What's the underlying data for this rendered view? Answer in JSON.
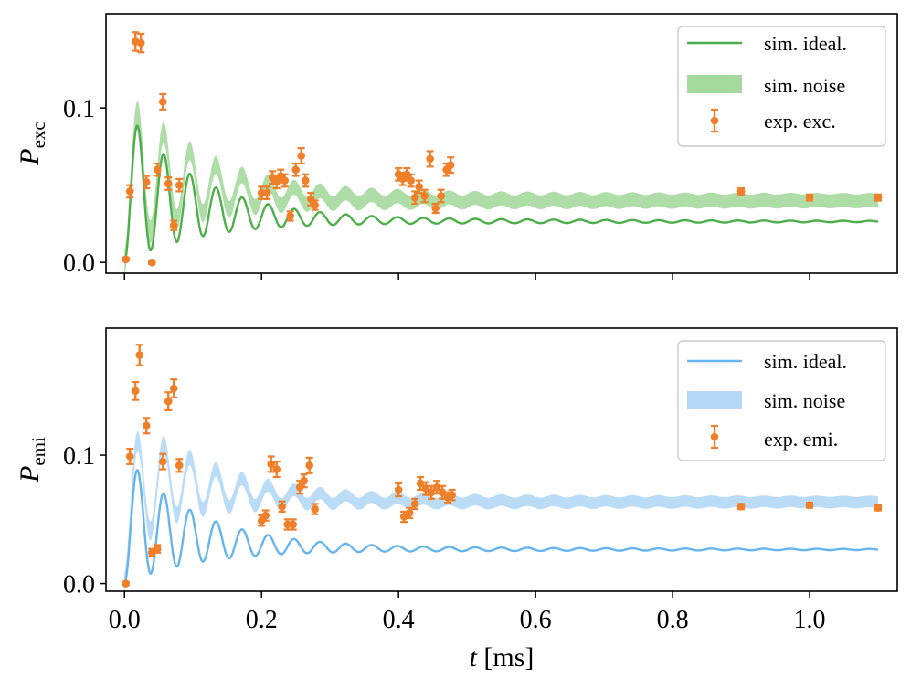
{
  "chart_data": [
    {
      "type": "line",
      "panel": "top",
      "ylabel": {
        "main": "P",
        "sub": "exc"
      },
      "xlabel": "",
      "xlim": [
        -0.027,
        1.128
      ],
      "ylim": [
        -0.007,
        0.161
      ],
      "xticks": [
        0.0,
        0.2,
        0.4,
        0.6,
        0.8,
        1.0
      ],
      "xtick_labels_visible": false,
      "yticks": [
        0.0,
        0.1
      ],
      "ytick_labels": [
        "0.0",
        "0.1"
      ],
      "colors": {
        "ideal": "#4daf4a",
        "noise_fill": "#a6d99d",
        "exp": "#f07f2a"
      },
      "legend": {
        "position": "top-right",
        "entries": [
          {
            "kind": "line",
            "label": "sim. ideal."
          },
          {
            "kind": "band",
            "label": "sim. noise"
          },
          {
            "kind": "errorbar",
            "label": "exp. exc."
          }
        ]
      },
      "model": {
        "period_ms": 0.0385,
        "decay_ms": 0.11,
        "ideal_peak": 0.1,
        "ideal_asymptote": 0.0265,
        "noise_offset_late": 0.0135,
        "noise_half_width": 0.0045,
        "x_end": 1.1
      },
      "series": [
        {
          "name": "sim. ideal.",
          "kind": "line",
          "description": "damped oscillation starting at 0, peaking ~0.10, decaying to ~0.027"
        },
        {
          "name": "sim. noise",
          "kind": "band",
          "description": "shaded band, oscillating, settling to ~0.035-0.044"
        },
        {
          "name": "exp. exc.",
          "kind": "errorbar",
          "points": [
            {
              "x": 0.002,
              "y": 0.002,
              "err": 0.001
            },
            {
              "x": 0.008,
              "y": 0.046,
              "err": 0.004
            },
            {
              "x": 0.016,
              "y": 0.143,
              "err": 0.006
            },
            {
              "x": 0.024,
              "y": 0.142,
              "err": 0.006
            },
            {
              "x": 0.032,
              "y": 0.052,
              "err": 0.004
            },
            {
              "x": 0.04,
              "y": 0.0,
              "err": 0.001
            },
            {
              "x": 0.048,
              "y": 0.06,
              "err": 0.004
            },
            {
              "x": 0.056,
              "y": 0.104,
              "err": 0.005
            },
            {
              "x": 0.064,
              "y": 0.051,
              "err": 0.004
            },
            {
              "x": 0.072,
              "y": 0.024,
              "err": 0.003
            },
            {
              "x": 0.08,
              "y": 0.05,
              "err": 0.004
            },
            {
              "x": 0.2,
              "y": 0.045,
              "err": 0.004
            },
            {
              "x": 0.208,
              "y": 0.045,
              "err": 0.004
            },
            {
              "x": 0.216,
              "y": 0.055,
              "err": 0.004
            },
            {
              "x": 0.222,
              "y": 0.052,
              "err": 0.004
            },
            {
              "x": 0.228,
              "y": 0.056,
              "err": 0.004
            },
            {
              "x": 0.234,
              "y": 0.053,
              "err": 0.004
            },
            {
              "x": 0.242,
              "y": 0.03,
              "err": 0.003
            },
            {
              "x": 0.25,
              "y": 0.06,
              "err": 0.004
            },
            {
              "x": 0.258,
              "y": 0.069,
              "err": 0.005
            },
            {
              "x": 0.264,
              "y": 0.053,
              "err": 0.004
            },
            {
              "x": 0.272,
              "y": 0.041,
              "err": 0.004
            },
            {
              "x": 0.278,
              "y": 0.037,
              "err": 0.003
            },
            {
              "x": 0.4,
              "y": 0.057,
              "err": 0.004
            },
            {
              "x": 0.406,
              "y": 0.054,
              "err": 0.004
            },
            {
              "x": 0.412,
              "y": 0.057,
              "err": 0.004
            },
            {
              "x": 0.418,
              "y": 0.053,
              "err": 0.004
            },
            {
              "x": 0.424,
              "y": 0.042,
              "err": 0.004
            },
            {
              "x": 0.43,
              "y": 0.049,
              "err": 0.004
            },
            {
              "x": 0.438,
              "y": 0.043,
              "err": 0.004
            },
            {
              "x": 0.446,
              "y": 0.067,
              "err": 0.005
            },
            {
              "x": 0.454,
              "y": 0.035,
              "err": 0.003
            },
            {
              "x": 0.462,
              "y": 0.043,
              "err": 0.004
            },
            {
              "x": 0.47,
              "y": 0.06,
              "err": 0.004
            },
            {
              "x": 0.476,
              "y": 0.063,
              "err": 0.005
            },
            {
              "x": 0.9,
              "y": 0.046,
              "err": 0.002
            },
            {
              "x": 1.0,
              "y": 0.042,
              "err": 0.002
            },
            {
              "x": 1.1,
              "y": 0.042,
              "err": 0.002
            }
          ]
        }
      ]
    },
    {
      "type": "line",
      "panel": "bottom",
      "ylabel": {
        "main": "P",
        "sub": "emi"
      },
      "xlabel": {
        "main": "t",
        "unit": " [ms]"
      },
      "xlim": [
        -0.027,
        1.128
      ],
      "ylim": [
        -0.006,
        0.199
      ],
      "xticks": [
        0.0,
        0.2,
        0.4,
        0.6,
        0.8,
        1.0
      ],
      "xtick_labels": [
        "0.0",
        "0.2",
        "0.4",
        "0.6",
        "0.8",
        "1.0"
      ],
      "yticks": [
        0.0,
        0.1
      ],
      "ytick_labels": [
        "0.0",
        "0.1"
      ],
      "colors": {
        "ideal": "#66b5ee",
        "noise_fill": "#b4d8f5",
        "exp": "#f07f2a"
      },
      "legend": {
        "position": "top-right",
        "entries": [
          {
            "kind": "line",
            "label": "sim. ideal."
          },
          {
            "kind": "band",
            "label": "sim. noise"
          },
          {
            "kind": "errorbar",
            "label": "exp. emi."
          }
        ]
      },
      "model": {
        "period_ms": 0.0385,
        "decay_ms": 0.11,
        "ideal_peak": 0.1,
        "ideal_asymptote": 0.0265,
        "noise_offset_late": 0.037,
        "noise_half_width": 0.0045,
        "x_end": 1.1
      },
      "series": [
        {
          "name": "sim. ideal.",
          "kind": "line",
          "description": "damped oscillation starting at 0, peaking ~0.10, decaying to ~0.027"
        },
        {
          "name": "sim. noise",
          "kind": "band",
          "description": "shaded band, oscillating, settling to ~0.059-0.068"
        },
        {
          "name": "exp. emi.",
          "kind": "errorbar",
          "points": [
            {
              "x": 0.002,
              "y": 0.0,
              "err": 0.001
            },
            {
              "x": 0.008,
              "y": 0.099,
              "err": 0.006
            },
            {
              "x": 0.016,
              "y": 0.15,
              "err": 0.007
            },
            {
              "x": 0.022,
              "y": 0.178,
              "err": 0.008
            },
            {
              "x": 0.032,
              "y": 0.123,
              "err": 0.006
            },
            {
              "x": 0.04,
              "y": 0.024,
              "err": 0.003
            },
            {
              "x": 0.048,
              "y": 0.027,
              "err": 0.003
            },
            {
              "x": 0.056,
              "y": 0.095,
              "err": 0.006
            },
            {
              "x": 0.064,
              "y": 0.142,
              "err": 0.007
            },
            {
              "x": 0.072,
              "y": 0.152,
              "err": 0.007
            },
            {
              "x": 0.08,
              "y": 0.092,
              "err": 0.005
            },
            {
              "x": 0.2,
              "y": 0.049,
              "err": 0.004
            },
            {
              "x": 0.206,
              "y": 0.053,
              "err": 0.004
            },
            {
              "x": 0.214,
              "y": 0.093,
              "err": 0.006
            },
            {
              "x": 0.222,
              "y": 0.089,
              "err": 0.006
            },
            {
              "x": 0.23,
              "y": 0.06,
              "err": 0.004
            },
            {
              "x": 0.238,
              "y": 0.046,
              "err": 0.004
            },
            {
              "x": 0.246,
              "y": 0.046,
              "err": 0.004
            },
            {
              "x": 0.256,
              "y": 0.075,
              "err": 0.005
            },
            {
              "x": 0.262,
              "y": 0.08,
              "err": 0.005
            },
            {
              "x": 0.27,
              "y": 0.092,
              "err": 0.006
            },
            {
              "x": 0.278,
              "y": 0.058,
              "err": 0.004
            },
            {
              "x": 0.4,
              "y": 0.073,
              "err": 0.005
            },
            {
              "x": 0.408,
              "y": 0.052,
              "err": 0.004
            },
            {
              "x": 0.416,
              "y": 0.055,
              "err": 0.004
            },
            {
              "x": 0.424,
              "y": 0.062,
              "err": 0.004
            },
            {
              "x": 0.432,
              "y": 0.078,
              "err": 0.005
            },
            {
              "x": 0.44,
              "y": 0.074,
              "err": 0.005
            },
            {
              "x": 0.448,
              "y": 0.071,
              "err": 0.005
            },
            {
              "x": 0.456,
              "y": 0.075,
              "err": 0.005
            },
            {
              "x": 0.464,
              "y": 0.071,
              "err": 0.005
            },
            {
              "x": 0.472,
              "y": 0.067,
              "err": 0.004
            },
            {
              "x": 0.478,
              "y": 0.069,
              "err": 0.004
            },
            {
              "x": 0.9,
              "y": 0.06,
              "err": 0.002
            },
            {
              "x": 1.0,
              "y": 0.061,
              "err": 0.002
            },
            {
              "x": 1.1,
              "y": 0.059,
              "err": 0.002
            }
          ]
        }
      ]
    }
  ]
}
